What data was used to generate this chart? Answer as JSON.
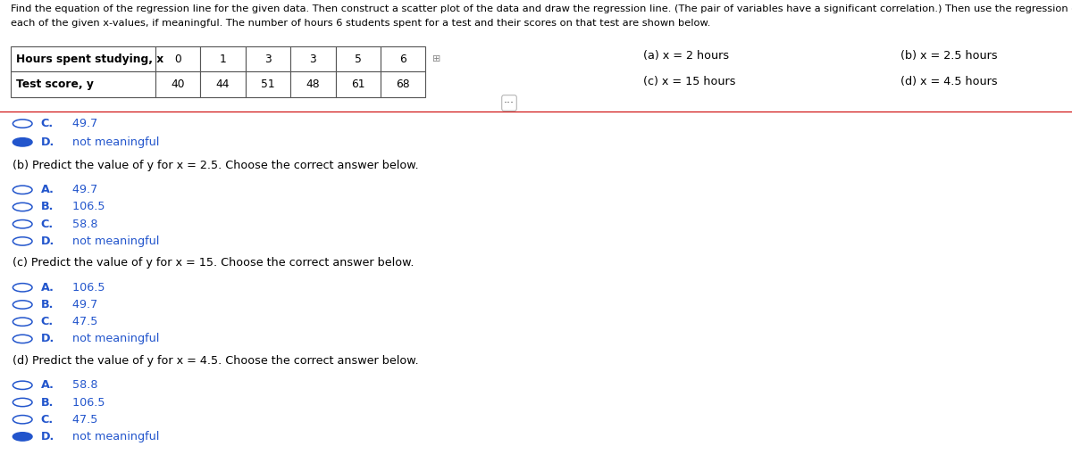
{
  "title_line1": "Find the equation of the regression line for the given data. Then construct a scatter plot of the data and draw the regression line. (The pair of variables have a significant correlation.) Then use the regression equation to predict the value of y for",
  "title_line2": "each of the given x-values, if meaningful. The number of hours 6 students spent for a test and their scores on that test are shown below.",
  "table_headers": [
    "Hours spent studying, x",
    "0",
    "1",
    "3",
    "3",
    "5",
    "6"
  ],
  "table_row2": [
    "Test score, y",
    "40",
    "44",
    "51",
    "48",
    "61",
    "68"
  ],
  "right_col1": "(a) x = 2 hours",
  "right_col2": "(b) x = 2.5 hours",
  "right_col3": "(c) x = 15 hours",
  "right_col4": "(d) x = 4.5 hours",
  "section_b_header": "(b) Predict the value of y for x = 2.5. Choose the correct answer below.",
  "section_c_header": "(c) Predict the value of y for x = 15. Choose the correct answer below.",
  "section_d_header": "(d) Predict the value of y for x = 4.5. Choose the correct answer below.",
  "bg_color": "#ffffff",
  "text_color": "#000000",
  "blue_color": "#2255cc",
  "circle_color": "#2255cc",
  "separator_color": "#cc0000",
  "font_size_title": 8.2,
  "font_size_body": 9.2,
  "font_size_table": 8.8
}
